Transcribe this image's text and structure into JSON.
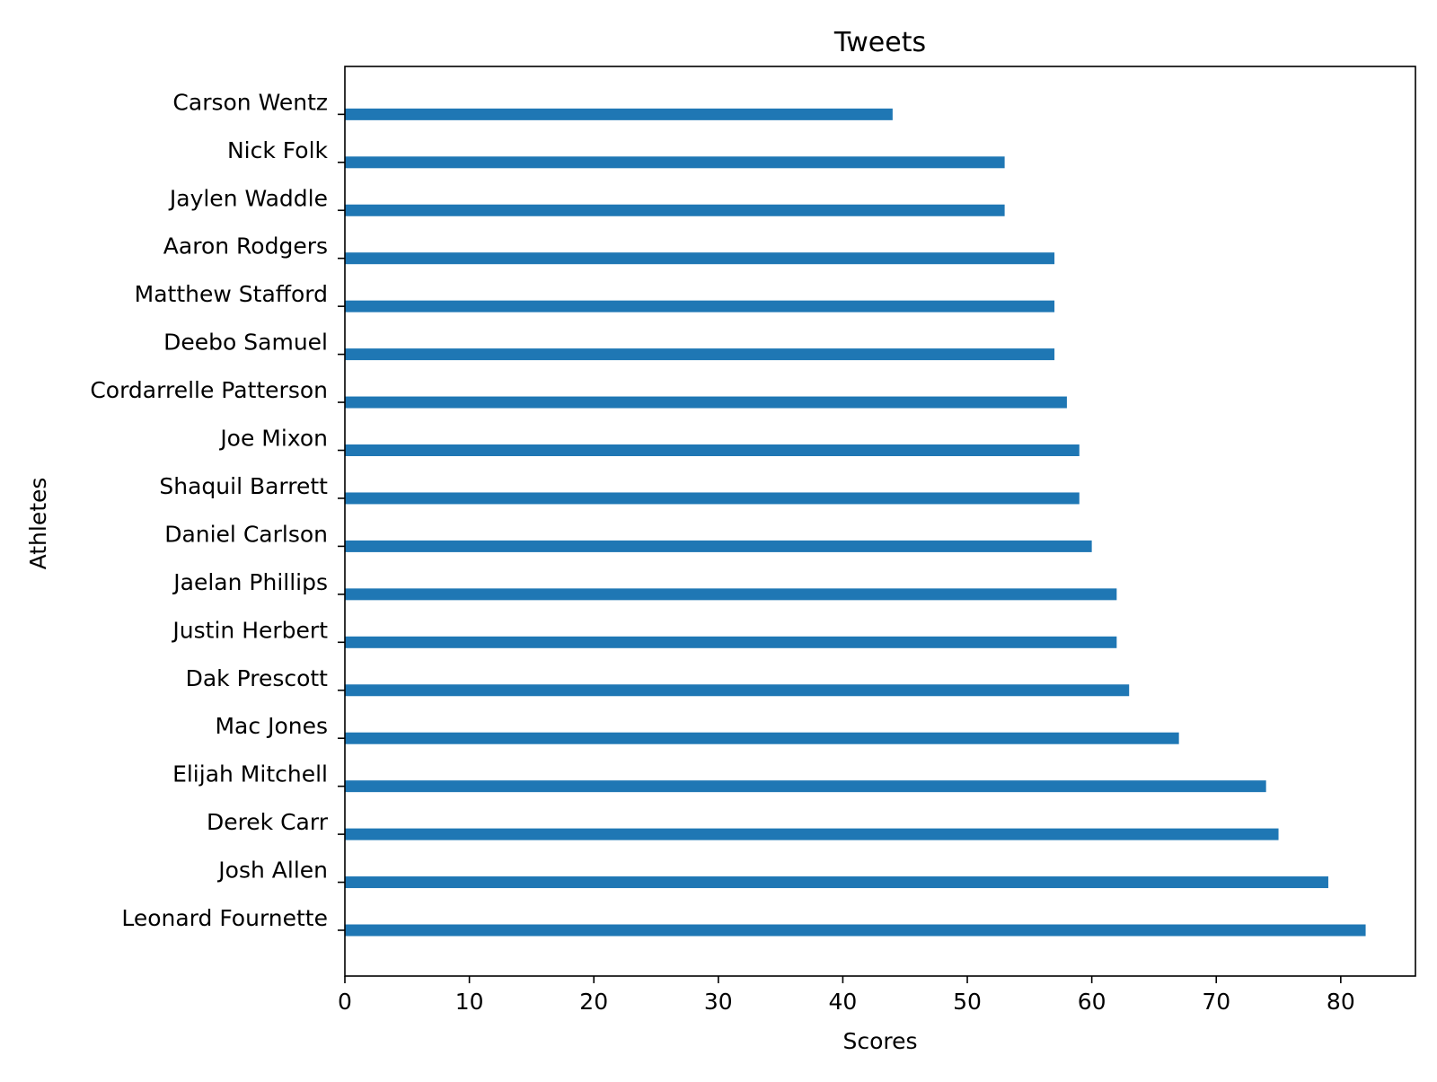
{
  "chart_data": {
    "type": "bar",
    "orientation": "horizontal",
    "title": "Tweets",
    "xlabel": "Scores",
    "ylabel": "Athletes",
    "xlim": [
      0,
      86
    ],
    "xticks": [
      0,
      10,
      20,
      30,
      40,
      50,
      60,
      70,
      80
    ],
    "grid": false,
    "bar_color": "#1f77b4",
    "categories": [
      "Leonard Fournette",
      "Josh Allen",
      "Derek Carr",
      "Elijah Mitchell",
      "Mac Jones",
      "Dak Prescott",
      "Justin Herbert",
      "Jaelan Phillips ",
      "Daniel Carlson",
      "Shaquil Barrett",
      "Joe Mixon",
      "Cordarrelle Patterson",
      "Deebo Samuel ",
      "Matthew Stafford",
      "Aaron Rodgers",
      "Jaylen Waddle",
      "Nick Folk ",
      "Carson Wentz"
    ],
    "values": [
      82,
      79,
      75,
      74,
      67,
      63,
      62,
      62,
      60,
      59,
      59,
      58,
      57,
      57,
      57,
      53,
      53,
      44
    ]
  }
}
